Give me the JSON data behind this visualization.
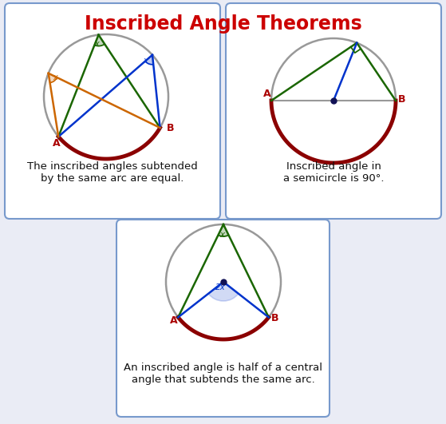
{
  "title": "Inscribed Angle Theorems",
  "title_color": "#cc0000",
  "title_fontsize": 17,
  "bg_color": "#eaecf5",
  "box_facecolor": "#ffffff",
  "box_edgecolor": "#7799cc",
  "circle_color": "#999999",
  "arc_color": "#8b0000",
  "green_color": "#1a6600",
  "blue_color": "#0033cc",
  "orange_color": "#cc6600",
  "label_color": "#aa0000",
  "dot_color": "#111155",
  "text1": "The inscribed angles subtended\nby the same arc are equal.",
  "text2": "Inscribed angle in\na semicircle is 90°.",
  "text3": "An inscribed angle is half of a central\nangle that subtends the same arc."
}
